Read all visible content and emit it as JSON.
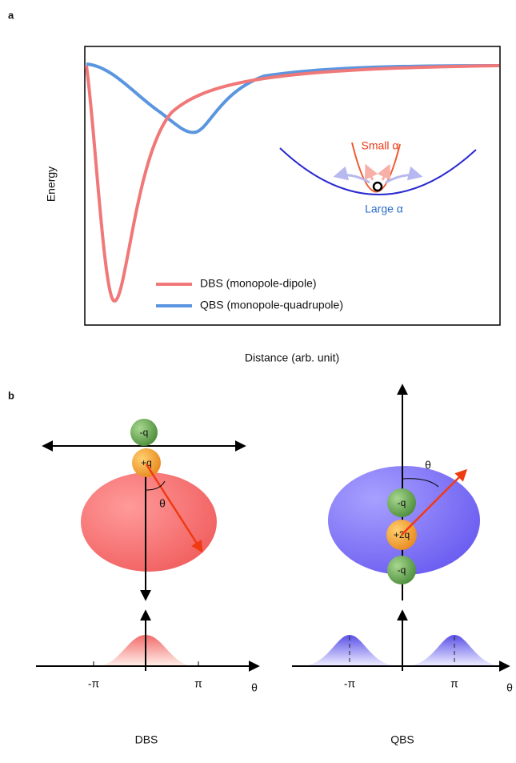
{
  "panel_a": {
    "label": "a",
    "y_label": "Energy",
    "x_label": "Distance (arb. unit)",
    "inset": {
      "small": "Small α",
      "large": "Large α"
    },
    "legend": [
      "DBS (monopole-dipole)",
      "QBS (monopole-quadrupole)"
    ]
  },
  "panel_b": {
    "label": "b",
    "dbs": {
      "charges": [
        "-q",
        "+q"
      ],
      "angle": "θ",
      "ticks": [
        "-π",
        "π"
      ],
      "axis": "θ",
      "caption": "DBS"
    },
    "qbs": {
      "charges": [
        "-q",
        "+2q",
        "-q"
      ],
      "angle": "θ",
      "ticks": [
        "-π",
        "π"
      ],
      "axis": "θ",
      "caption": "QBS"
    }
  }
}
